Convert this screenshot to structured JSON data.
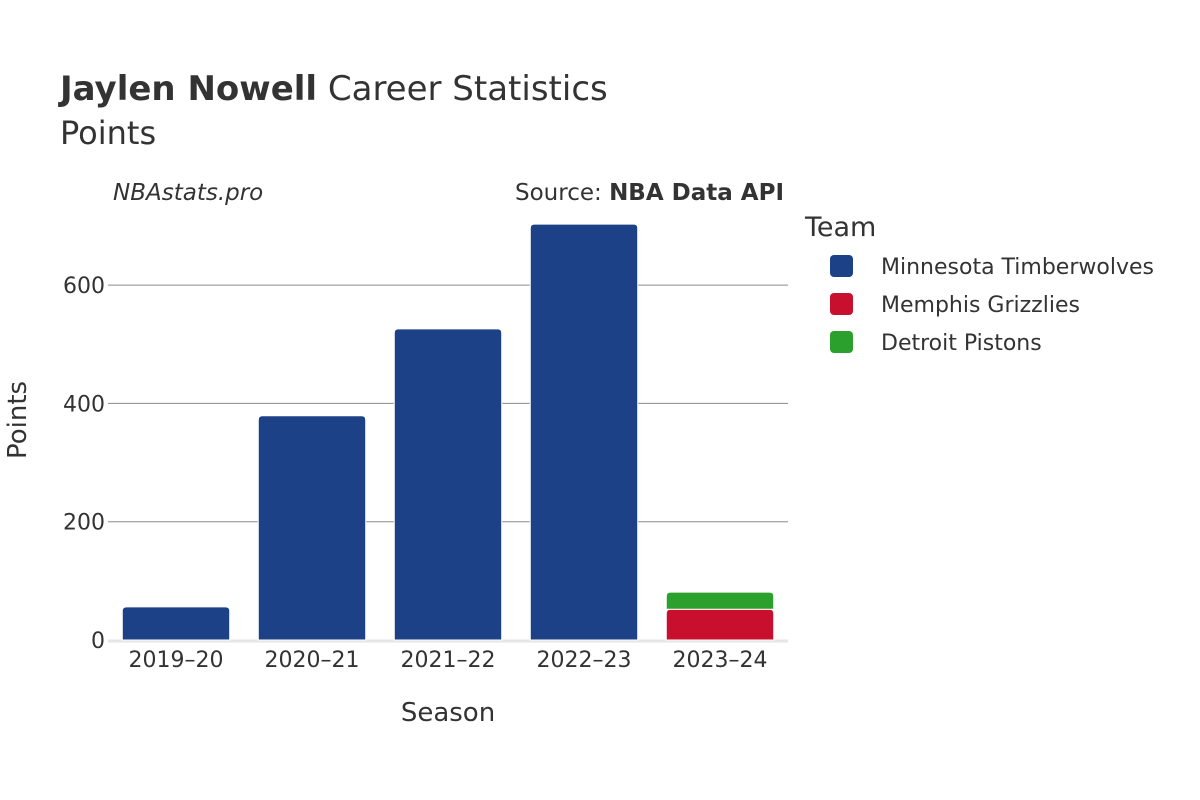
{
  "title": {
    "player": "Jaylen Nowell",
    "rest": "Career Statistics",
    "subtitle": "Points"
  },
  "watermark": "NBAstats.pro",
  "source": {
    "prefix": "Source: ",
    "name": "NBA Data API"
  },
  "legend": {
    "title": "Team"
  },
  "colors": {
    "Minnesota Timberwolves": "#1d4187",
    "Memphis Grizzlies": "#c8102e",
    "Detroit Pistons": "#2ca02c"
  },
  "chart_data": {
    "type": "bar",
    "stacked": true,
    "xlabel": "Season",
    "ylabel": "Points",
    "ylim": [
      0,
      710
    ],
    "yticks": [
      0,
      200,
      400,
      600
    ],
    "grid": true,
    "legend_position": "right",
    "categories": [
      "2019–20",
      "2020–21",
      "2021–22",
      "2022–23",
      "2023–24"
    ],
    "series": [
      {
        "name": "Minnesota Timberwolves",
        "values": [
          56,
          379,
          526,
          703,
          0
        ]
      },
      {
        "name": "Memphis Grizzlies",
        "values": [
          0,
          0,
          0,
          0,
          52
        ]
      },
      {
        "name": "Detroit Pistons",
        "values": [
          0,
          0,
          0,
          0,
          29
        ]
      }
    ]
  }
}
